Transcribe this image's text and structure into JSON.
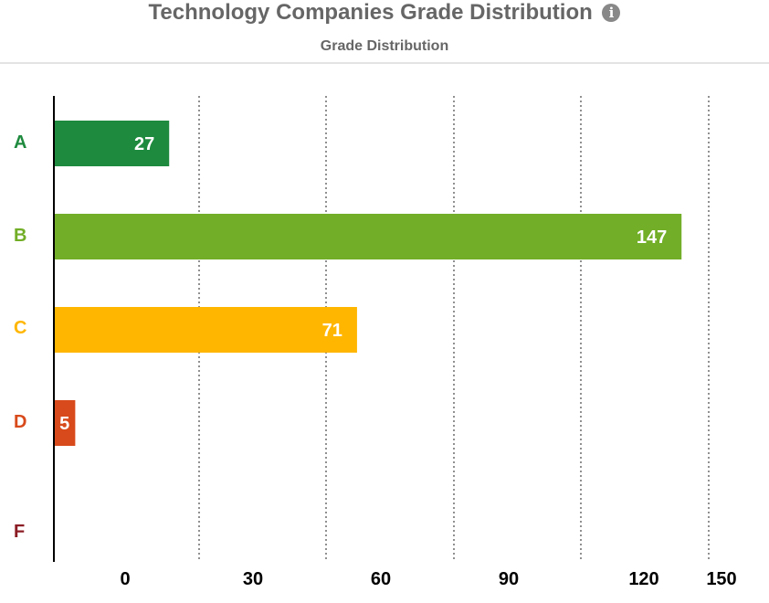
{
  "header": {
    "title": "Technology Companies Grade Distribution",
    "info_icon": "info-circle-icon"
  },
  "chart_data": {
    "type": "bar",
    "orientation": "horizontal",
    "title": "Grade Distribution",
    "categories": [
      "A",
      "B",
      "C",
      "D",
      "F"
    ],
    "values": [
      27,
      147,
      71,
      5,
      0
    ],
    "colors": [
      "#1e8a3e",
      "#72ae27",
      "#ffb600",
      "#d84a1b",
      "#8b1c24"
    ],
    "xticks": [
      "0",
      "30",
      "60",
      "90",
      "120",
      "150"
    ],
    "xlim": [
      0,
      150
    ],
    "grid": "vertical dotted",
    "data_labels": true
  }
}
